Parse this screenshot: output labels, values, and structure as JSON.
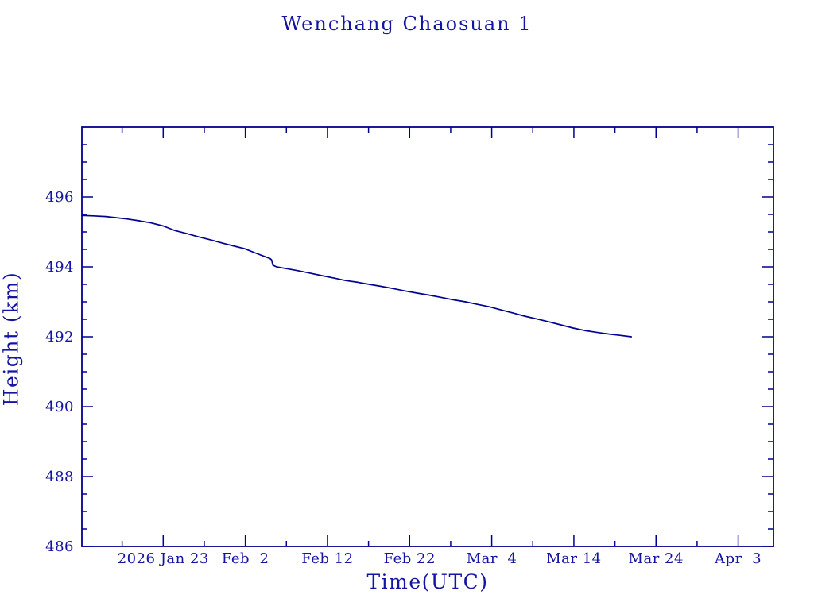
{
  "page": {
    "background_color": "#ffffff",
    "text_color": "#1414a4",
    "line_color": "#000090"
  },
  "chart_data": {
    "type": "line",
    "title": "Wenchang Chaosuan 1",
    "xlabel": "Time(UTC)",
    "ylabel": "Height (km)",
    "grid": false,
    "legend": null,
    "x_encoding": "day_of_year_2026",
    "xlim": [
      13.1,
      97.3
    ],
    "ylim": [
      486,
      498
    ],
    "x_major_ticks": [
      {
        "t": 23,
        "label": "2026 Jan 23"
      },
      {
        "t": 33,
        "label": "Feb  2"
      },
      {
        "t": 43,
        "label": "Feb 12"
      },
      {
        "t": 53,
        "label": "Feb 22"
      },
      {
        "t": 63,
        "label": "Mar  4"
      },
      {
        "t": 73,
        "label": "Mar 14"
      },
      {
        "t": 83,
        "label": "Mar 24"
      },
      {
        "t": 93,
        "label": "Apr  3"
      }
    ],
    "x_minor_ticks": [
      18,
      28,
      38,
      48,
      58,
      68,
      78,
      88
    ],
    "y_major_ticks": [
      {
        "v": 486,
        "label": "486"
      },
      {
        "v": 488,
        "label": "488"
      },
      {
        "v": 490,
        "label": "490"
      },
      {
        "v": 492,
        "label": "492"
      },
      {
        "v": 494,
        "label": "494"
      },
      {
        "v": 496,
        "label": "496"
      }
    ],
    "y_minor_ticks": [
      486.5,
      487,
      487.5,
      488.5,
      489,
      489.5,
      490.5,
      491,
      491.5,
      492.5,
      493,
      493.5,
      494.5,
      495,
      495.5,
      496.5,
      497,
      497.5
    ],
    "series": [
      {
        "name": "height-km",
        "color": "#000090",
        "points": [
          [
            13.1,
            495.47
          ],
          [
            14.5,
            495.46
          ],
          [
            16.0,
            495.44
          ],
          [
            17.5,
            495.4
          ],
          [
            18.6,
            495.37
          ],
          [
            20.0,
            495.32
          ],
          [
            21.5,
            495.26
          ],
          [
            23.0,
            495.17
          ],
          [
            24.0,
            495.08
          ],
          [
            24.4,
            495.04
          ],
          [
            25.9,
            494.95
          ],
          [
            27.3,
            494.86
          ],
          [
            28.8,
            494.77
          ],
          [
            30.2,
            494.68
          ],
          [
            31.7,
            494.59
          ],
          [
            32.9,
            494.52
          ],
          [
            34.1,
            494.41
          ],
          [
            35.1,
            494.32
          ],
          [
            36.0,
            494.24
          ],
          [
            36.2,
            494.2
          ],
          [
            36.35,
            494.05
          ],
          [
            36.8,
            494.0
          ],
          [
            38.0,
            493.95
          ],
          [
            39.4,
            493.89
          ],
          [
            40.9,
            493.82
          ],
          [
            42.3,
            493.75
          ],
          [
            43.8,
            493.68
          ],
          [
            45.2,
            493.61
          ],
          [
            46.7,
            493.56
          ],
          [
            48.1,
            493.5
          ],
          [
            49.6,
            493.44
          ],
          [
            51.0,
            493.38
          ],
          [
            52.5,
            493.31
          ],
          [
            53.9,
            493.25
          ],
          [
            55.4,
            493.19
          ],
          [
            56.8,
            493.13
          ],
          [
            58.3,
            493.06
          ],
          [
            59.8,
            493.0
          ],
          [
            61.2,
            492.93
          ],
          [
            62.7,
            492.86
          ],
          [
            64.1,
            492.77
          ],
          [
            65.6,
            492.68
          ],
          [
            67.0,
            492.59
          ],
          [
            68.5,
            492.51
          ],
          [
            69.9,
            492.43
          ],
          [
            71.4,
            492.34
          ],
          [
            72.9,
            492.25
          ],
          [
            74.3,
            492.18
          ],
          [
            75.7,
            492.13
          ],
          [
            77.2,
            492.08
          ],
          [
            78.6,
            492.04
          ],
          [
            80.0,
            492.0
          ]
        ]
      }
    ]
  }
}
